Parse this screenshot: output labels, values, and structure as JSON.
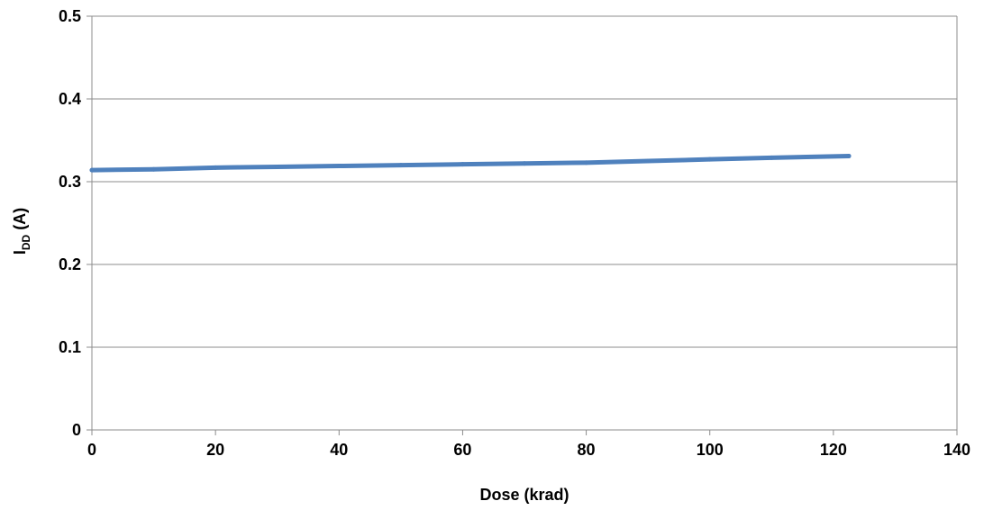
{
  "chart_data": {
    "type": "line",
    "title": "",
    "xlabel": "Dose (krad)",
    "ylabel": {
      "main": "I",
      "subscript": "DD",
      "suffix": " (A)"
    },
    "xlim": [
      0,
      140
    ],
    "ylim": [
      0,
      0.5
    ],
    "x_ticks": [
      0,
      20,
      40,
      60,
      80,
      100,
      120,
      140
    ],
    "y_ticks": [
      0,
      0.1,
      0.2,
      0.3,
      0.4,
      0.5
    ],
    "y_tick_labels": [
      "0",
      "0.1",
      "0.2",
      "0.3",
      "0.4",
      "0.5"
    ],
    "grid": "horizontal",
    "legend": "none",
    "series": [
      {
        "color": "#4f81bd",
        "x": [
          0,
          10,
          20,
          30,
          40,
          50,
          60,
          70,
          80,
          90,
          100,
          110,
          122.5
        ],
        "y": [
          0.314,
          0.315,
          0.317,
          0.318,
          0.319,
          0.32,
          0.321,
          0.322,
          0.323,
          0.325,
          0.327,
          0.329,
          0.331
        ]
      }
    ]
  }
}
